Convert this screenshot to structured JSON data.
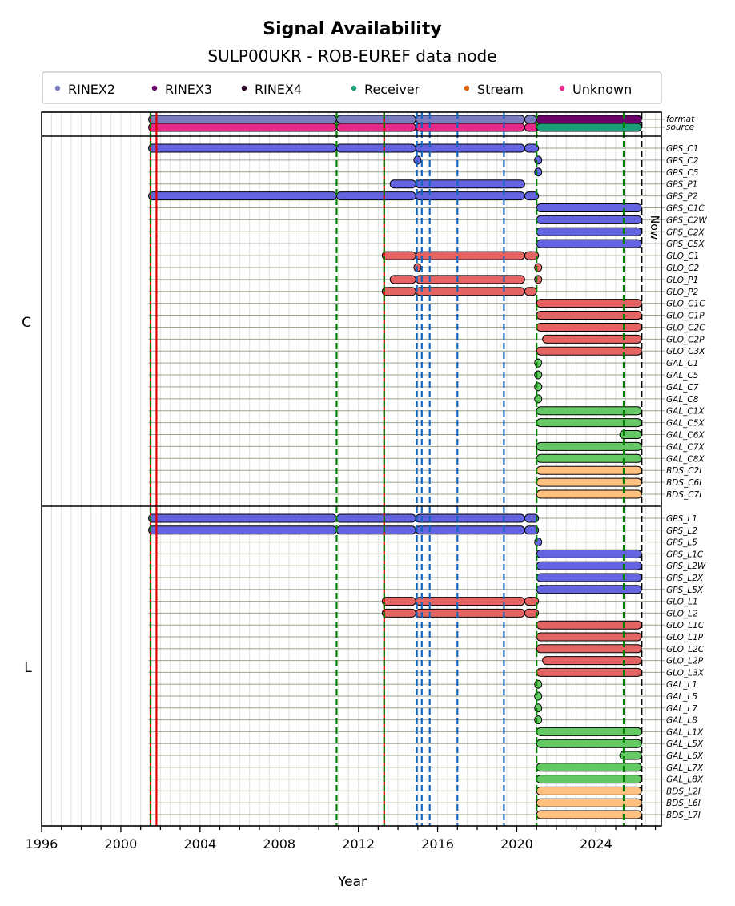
{
  "chart_data": {
    "type": "timeline",
    "title": "Signal Availability",
    "subtitle": "SULP00UKR - ROB-EUREF data node",
    "xlabel": "Year",
    "xlim": [
      1996,
      2027.3
    ],
    "xticks": [
      1996,
      2000,
      2004,
      2008,
      2012,
      2016,
      2020,
      2024
    ],
    "grid": "vertical, half-year",
    "legend": {
      "placement": "top",
      "entries": [
        {
          "label": "RINEX2",
          "color": "#7b7bc0"
        },
        {
          "label": "RINEX3",
          "color": "#6a006a"
        },
        {
          "label": "RINEX4",
          "color": "#2a0025"
        },
        {
          "label": "Receiver",
          "color": "#1b9e77"
        },
        {
          "label": "Stream",
          "color": "#d95f02"
        },
        {
          "label": "Unknown",
          "color": "#e7298a"
        }
      ]
    },
    "now_label": "Now",
    "now_year": 2026.3,
    "system_colors": {
      "GPS": "#6464e0",
      "GLO": "#e46464",
      "GAL": "#64c864",
      "BDS": "#ffc080"
    },
    "meta_rows": [
      {
        "label": "format",
        "segments": [
          {
            "start": 2001.4,
            "end": 2010.9,
            "color": "#7b7bc0"
          },
          {
            "start": 2010.9,
            "end": 2014.9,
            "color": "#7b7bc0"
          },
          {
            "start": 2014.9,
            "end": 2020.4,
            "color": "#7b7bc0"
          },
          {
            "start": 2020.4,
            "end": 2021.0,
            "color": "#7b7bc0"
          },
          {
            "start": 2021.0,
            "end": 2026.3,
            "color": "#6a006a"
          }
        ]
      },
      {
        "label": "source",
        "segments": [
          {
            "start": 2001.4,
            "end": 2010.9,
            "color": "#e7298a"
          },
          {
            "start": 2010.9,
            "end": 2014.9,
            "color": "#e7298a"
          },
          {
            "start": 2014.9,
            "end": 2020.4,
            "color": "#e7298a"
          },
          {
            "start": 2020.4,
            "end": 2021.1,
            "color": "#e7298a"
          },
          {
            "start": 2021.0,
            "end": 2026.3,
            "color": "#1b9e77"
          }
        ]
      }
    ],
    "sections": [
      {
        "name": "C",
        "rows": [
          {
            "label": "GPS_C1",
            "segments": [
              [
                2001.4,
                2010.9
              ],
              [
                2010.9,
                2014.9
              ],
              [
                2014.9,
                2020.4
              ],
              [
                2020.4,
                2021.1
              ]
            ]
          },
          {
            "label": "GPS_C2",
            "segments": [
              [
                2014.8,
                2015.0
              ],
              [
                2020.9,
                2021.1
              ]
            ]
          },
          {
            "label": "GPS_C5",
            "segments": [
              [
                2020.9,
                2021.1
              ]
            ]
          },
          {
            "label": "GPS_P1",
            "segments": [
              [
                2013.6,
                2014.9
              ],
              [
                2014.9,
                2020.4
              ]
            ]
          },
          {
            "label": "GPS_P2",
            "segments": [
              [
                2001.4,
                2010.9
              ],
              [
                2010.9,
                2014.9
              ],
              [
                2014.9,
                2020.4
              ],
              [
                2020.4,
                2021.1
              ]
            ]
          },
          {
            "label": "GPS_C1C",
            "segments": [
              [
                2021.0,
                2026.3
              ]
            ]
          },
          {
            "label": "GPS_C2W",
            "segments": [
              [
                2021.0,
                2026.3
              ]
            ]
          },
          {
            "label": "GPS_C2X",
            "segments": [
              [
                2021.0,
                2026.3
              ]
            ]
          },
          {
            "label": "GPS_C5X",
            "segments": [
              [
                2021.0,
                2026.3
              ]
            ]
          },
          {
            "label": "GLO_C1",
            "segments": [
              [
                2013.2,
                2014.9
              ],
              [
                2014.9,
                2020.4
              ],
              [
                2020.4,
                2021.1
              ]
            ]
          },
          {
            "label": "GLO_C2",
            "segments": [
              [
                2014.8,
                2015.0
              ],
              [
                2020.9,
                2021.1
              ]
            ]
          },
          {
            "label": "GLO_P1",
            "segments": [
              [
                2013.6,
                2014.9
              ],
              [
                2014.9,
                2020.4
              ],
              [
                2020.9,
                2021.1
              ]
            ]
          },
          {
            "label": "GLO_P2",
            "segments": [
              [
                2013.2,
                2014.9
              ],
              [
                2014.9,
                2020.4
              ],
              [
                2020.4,
                2021.0
              ]
            ]
          },
          {
            "label": "GLO_C1C",
            "segments": [
              [
                2021.0,
                2026.3
              ]
            ]
          },
          {
            "label": "GLO_C1P",
            "segments": [
              [
                2021.0,
                2026.3
              ]
            ]
          },
          {
            "label": "GLO_C2C",
            "segments": [
              [
                2021.0,
                2026.3
              ]
            ]
          },
          {
            "label": "GLO_C2P",
            "segments": [
              [
                2021.3,
                2026.3
              ]
            ]
          },
          {
            "label": "GLO_C3X",
            "segments": [
              [
                2021.0,
                2026.3
              ]
            ]
          },
          {
            "label": "GAL_C1",
            "segments": [
              [
                2020.9,
                2021.1
              ]
            ]
          },
          {
            "label": "GAL_C5",
            "segments": [
              [
                2020.9,
                2021.1
              ]
            ]
          },
          {
            "label": "GAL_C7",
            "segments": [
              [
                2020.9,
                2021.1
              ]
            ]
          },
          {
            "label": "GAL_C8",
            "segments": [
              [
                2020.9,
                2021.1
              ]
            ]
          },
          {
            "label": "GAL_C1X",
            "segments": [
              [
                2021.0,
                2026.3
              ]
            ]
          },
          {
            "label": "GAL_C5X",
            "segments": [
              [
                2021.0,
                2026.3
              ]
            ]
          },
          {
            "label": "GAL_C6X",
            "segments": [
              [
                2025.2,
                2026.3
              ]
            ]
          },
          {
            "label": "GAL_C7X",
            "segments": [
              [
                2021.0,
                2026.3
              ]
            ]
          },
          {
            "label": "GAL_C8X",
            "segments": [
              [
                2021.0,
                2026.3
              ]
            ]
          },
          {
            "label": "BDS_C2I",
            "segments": [
              [
                2021.0,
                2026.3
              ]
            ]
          },
          {
            "label": "BDS_C6I",
            "segments": [
              [
                2021.0,
                2026.3
              ]
            ]
          },
          {
            "label": "BDS_C7I",
            "segments": [
              [
                2021.0,
                2026.3
              ]
            ]
          }
        ]
      },
      {
        "name": "L",
        "rows": [
          {
            "label": "GPS_L1",
            "segments": [
              [
                2001.4,
                2010.9
              ],
              [
                2010.9,
                2014.9
              ],
              [
                2014.9,
                2020.4
              ],
              [
                2020.4,
                2021.1
              ]
            ]
          },
          {
            "label": "GPS_L2",
            "segments": [
              [
                2001.4,
                2010.9
              ],
              [
                2010.9,
                2014.9
              ],
              [
                2014.9,
                2020.4
              ],
              [
                2020.4,
                2021.1
              ]
            ]
          },
          {
            "label": "GPS_L5",
            "segments": [
              [
                2020.9,
                2021.1
              ]
            ]
          },
          {
            "label": "GPS_L1C",
            "segments": [
              [
                2021.0,
                2026.3
              ]
            ]
          },
          {
            "label": "GPS_L2W",
            "segments": [
              [
                2021.0,
                2026.3
              ]
            ]
          },
          {
            "label": "GPS_L2X",
            "segments": [
              [
                2021.0,
                2026.3
              ]
            ]
          },
          {
            "label": "GPS_L5X",
            "segments": [
              [
                2021.0,
                2026.3
              ]
            ]
          },
          {
            "label": "GLO_L1",
            "segments": [
              [
                2013.2,
                2014.9
              ],
              [
                2014.9,
                2020.4
              ],
              [
                2020.4,
                2021.1
              ]
            ]
          },
          {
            "label": "GLO_L2",
            "segments": [
              [
                2013.2,
                2014.9
              ],
              [
                2014.9,
                2020.4
              ],
              [
                2020.4,
                2021.1
              ]
            ]
          },
          {
            "label": "GLO_L1C",
            "segments": [
              [
                2021.0,
                2026.3
              ]
            ]
          },
          {
            "label": "GLO_L1P",
            "segments": [
              [
                2021.0,
                2026.3
              ]
            ]
          },
          {
            "label": "GLO_L2C",
            "segments": [
              [
                2021.0,
                2026.3
              ]
            ]
          },
          {
            "label": "GLO_L2P",
            "segments": [
              [
                2021.3,
                2026.3
              ]
            ]
          },
          {
            "label": "GLO_L3X",
            "segments": [
              [
                2021.0,
                2026.3
              ]
            ]
          },
          {
            "label": "GAL_L1",
            "segments": [
              [
                2020.9,
                2021.1
              ]
            ]
          },
          {
            "label": "GAL_L5",
            "segments": [
              [
                2020.9,
                2021.1
              ]
            ]
          },
          {
            "label": "GAL_L7",
            "segments": [
              [
                2020.9,
                2021.1
              ]
            ]
          },
          {
            "label": "GAL_L8",
            "segments": [
              [
                2020.9,
                2021.1
              ]
            ]
          },
          {
            "label": "GAL_L1X",
            "segments": [
              [
                2021.0,
                2026.3
              ]
            ]
          },
          {
            "label": "GAL_L5X",
            "segments": [
              [
                2021.0,
                2026.3
              ]
            ]
          },
          {
            "label": "GAL_L6X",
            "segments": [
              [
                2025.2,
                2026.3
              ]
            ]
          },
          {
            "label": "GAL_L7X",
            "segments": [
              [
                2021.0,
                2026.3
              ]
            ]
          },
          {
            "label": "GAL_L8X",
            "segments": [
              [
                2021.0,
                2026.3
              ]
            ]
          },
          {
            "label": "BDS_L2I",
            "segments": [
              [
                2021.0,
                2026.3
              ]
            ]
          },
          {
            "label": "BDS_L6I",
            "segments": [
              [
                2021.0,
                2026.3
              ]
            ]
          },
          {
            "label": "BDS_L7I",
            "segments": [
              [
                2021.0,
                2026.3
              ]
            ]
          }
        ]
      }
    ],
    "event_lines": [
      {
        "year": 2001.5,
        "color": "#008000",
        "style": "dashed",
        "overlay": "#e00000"
      },
      {
        "year": 2001.8,
        "color": "#e00000",
        "style": "solid"
      },
      {
        "year": 2010.9,
        "color": "#008000",
        "style": "dashed"
      },
      {
        "year": 2013.3,
        "color": "#008000",
        "style": "dashed",
        "overlay": "#e00000"
      },
      {
        "year": 2014.95,
        "color": "#1565c0",
        "style": "dashed"
      },
      {
        "year": 2015.2,
        "color": "#1565c0",
        "style": "dashed"
      },
      {
        "year": 2015.6,
        "color": "#1565c0",
        "style": "dashed"
      },
      {
        "year": 2017.0,
        "color": "#1565c0",
        "style": "dashed"
      },
      {
        "year": 2019.35,
        "color": "#1565c0",
        "style": "dashed"
      },
      {
        "year": 2021.0,
        "color": "#008000",
        "style": "dashed"
      },
      {
        "year": 2025.4,
        "color": "#008000",
        "style": "dashed"
      },
      {
        "year": 2026.3,
        "color": "#000000",
        "style": "dashed"
      }
    ]
  }
}
